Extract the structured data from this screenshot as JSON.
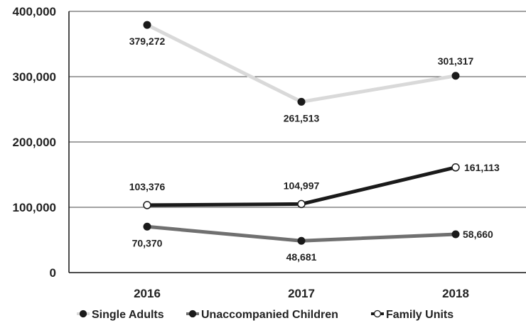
{
  "chart_data": {
    "type": "line",
    "categories": [
      "2016",
      "2017",
      "2018"
    ],
    "ylim": [
      0,
      400000
    ],
    "yticks": [
      0,
      100000,
      200000,
      300000,
      400000
    ],
    "ytick_labels": [
      "0",
      "100,000",
      "200,000",
      "300,000",
      "400,000"
    ],
    "grid": true,
    "legend_position": "bottom",
    "series": [
      {
        "name": "Single Adults",
        "values": [
          379272,
          261513,
          301317
        ],
        "labels": [
          "379,272",
          "261,513",
          "301,317"
        ],
        "color": "#d9d9d9",
        "marker": "filled",
        "marker_color": "#1a1a1a"
      },
      {
        "name": "Unaccompanied Children",
        "values": [
          70370,
          48681,
          58660
        ],
        "labels": [
          "70,370",
          "48,681",
          "58,660"
        ],
        "color": "#707070",
        "marker": "filled",
        "marker_color": "#1a1a1a"
      },
      {
        "name": "Family Units",
        "values": [
          103376,
          104997,
          161113
        ],
        "labels": [
          "103,376",
          "104,997",
          "161,113"
        ],
        "color": "#1a1a1a",
        "marker": "hollow",
        "marker_color": "#1a1a1a"
      }
    ]
  }
}
